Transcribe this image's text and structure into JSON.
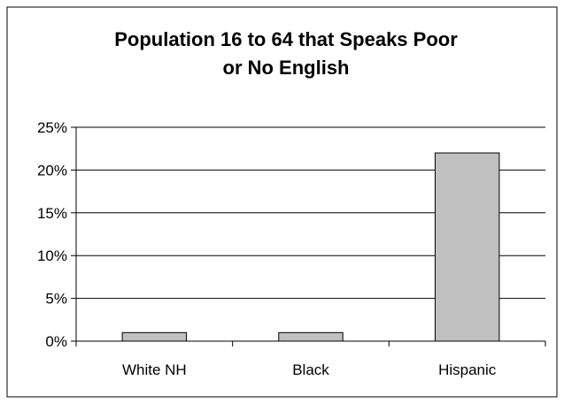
{
  "chart_data": {
    "type": "bar",
    "title_lines": [
      "Population 16 to 64 that Speaks Poor",
      "or No English"
    ],
    "categories": [
      "White NH",
      "Black",
      "Hispanic"
    ],
    "values": [
      1,
      1,
      22
    ],
    "ylim": [
      0,
      25
    ],
    "yticks": [
      0,
      5,
      10,
      15,
      20,
      25
    ],
    "ytick_labels": [
      "0%",
      "5%",
      "10%",
      "15%",
      "20%",
      "25%"
    ],
    "grid": true,
    "legend": "none",
    "bar_color": "#c0c0c0",
    "bar_edge_color": "#000000",
    "xlabel": "",
    "ylabel": ""
  }
}
